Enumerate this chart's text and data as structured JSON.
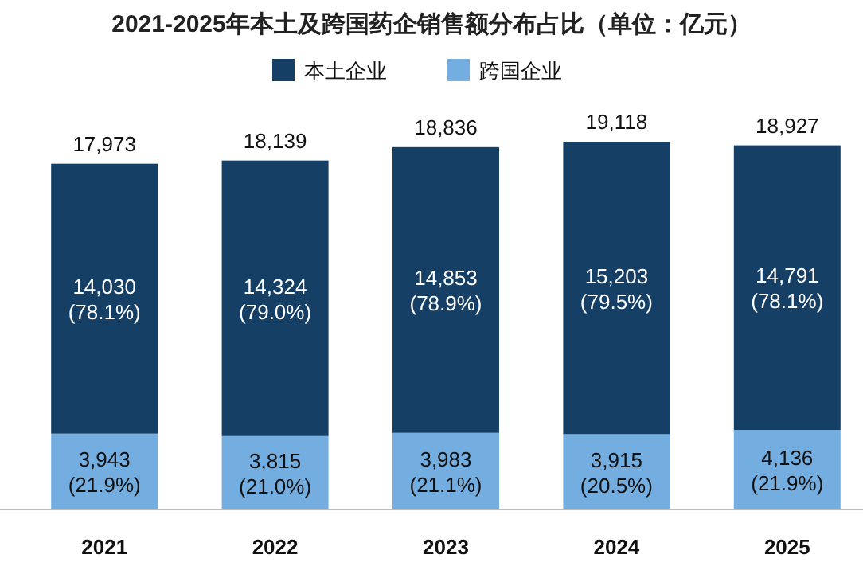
{
  "chart_data": {
    "type": "bar",
    "title": "2021-2025年本土及跨国药企销售额分布占比（单位：亿元）",
    "categories": [
      "2021",
      "2022",
      "2023",
      "2024",
      "2025"
    ],
    "stacked": true,
    "legend": "top",
    "series": [
      {
        "name": "跨国企业",
        "color": "#74aee0",
        "values": [
          3943,
          3815,
          3983,
          3915,
          4136
        ],
        "value_labels": [
          "3,943\n(21.9%)",
          "3,815\n(21.0%)",
          "3,983\n(21.1%)",
          "3,915\n(20.5%)",
          "4,136\n(21.9%)"
        ]
      },
      {
        "name": "本土企业",
        "color": "#163f66",
        "values": [
          14030,
          14324,
          14853,
          15203,
          14791
        ],
        "value_labels": [
          "14,030\n(78.1%)",
          "14,324\n(79.0%)",
          "14,853\n(78.9%)",
          "15,203\n(79.5%)",
          "14,791\n(78.1%)"
        ]
      }
    ],
    "totals": [
      "17,973",
      "18,139",
      "18,836",
      "19,118",
      "18,927"
    ]
  }
}
